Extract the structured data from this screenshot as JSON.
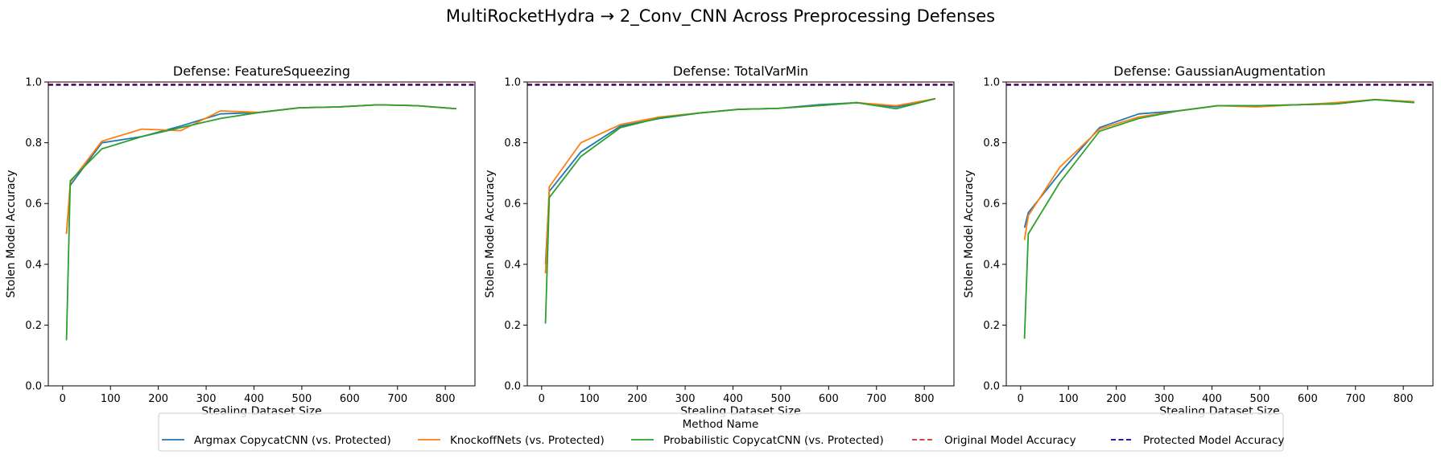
{
  "figure": {
    "suptitle": "MultiRocketHydra → 2_Conv_CNN Across Preprocessing Defenses"
  },
  "legend": {
    "title": "Method Name",
    "placement": "bottom-center",
    "entries": [
      {
        "label": "Argmax CopycatCNN (vs. Protected)",
        "color": "#1f77b4",
        "style": "solid"
      },
      {
        "label": "KnockoffNets (vs. Protected)",
        "color": "#ff7f0e",
        "style": "solid"
      },
      {
        "label": "Probabilistic CopycatCNN (vs. Protected)",
        "color": "#2ca02c",
        "style": "solid"
      },
      {
        "label": "Original Model Accuracy",
        "color": "#d62728",
        "style": "dashed"
      },
      {
        "label": "Protected Model Accuracy",
        "color": "#00008b",
        "style": "dashed"
      }
    ]
  },
  "chart_data": [
    {
      "type": "line",
      "title": "Defense: FeatureSqueezing",
      "xlabel": "Stealing Dataset Size",
      "ylabel": "Stolen Model Accuracy",
      "xlim": [
        -30,
        862
      ],
      "ylim": [
        0,
        1.0
      ],
      "xticks": [
        0,
        100,
        200,
        300,
        400,
        500,
        600,
        700,
        800
      ],
      "yticks": [
        0.0,
        0.2,
        0.4,
        0.6,
        0.8,
        1.0
      ],
      "grid": false,
      "reference_lines": [
        {
          "name": "Original Model Accuracy",
          "y": 0.993,
          "color": "#d62728"
        },
        {
          "name": "Protected Model Accuracy",
          "y": 0.99,
          "color": "#00008b"
        }
      ],
      "series": [
        {
          "name": "Argmax CopycatCNN (vs. Protected)",
          "color": "#1f77b4",
          "x": [
            8,
            16,
            82,
            165,
            247,
            330,
            412,
            494,
            577,
            659,
            741,
            823
          ],
          "y": [
            0.5,
            0.66,
            0.8,
            0.82,
            0.855,
            0.895,
            0.9,
            0.915,
            0.918,
            0.925,
            0.922,
            0.912
          ]
        },
        {
          "name": "KnockoffNets (vs. Protected)",
          "color": "#ff7f0e",
          "x": [
            8,
            16,
            82,
            165,
            247,
            330,
            412,
            494,
            577,
            659,
            741,
            823
          ],
          "y": [
            0.5,
            0.67,
            0.805,
            0.845,
            0.84,
            0.905,
            0.9,
            0.915,
            0.918,
            0.925,
            0.922,
            0.912
          ]
        },
        {
          "name": "Probabilistic CopycatCNN (vs. Protected)",
          "color": "#2ca02c",
          "x": [
            8,
            16,
            82,
            165,
            247,
            330,
            412,
            494,
            577,
            659,
            741,
            823
          ],
          "y": [
            0.15,
            0.675,
            0.78,
            0.82,
            0.85,
            0.88,
            0.9,
            0.915,
            0.918,
            0.925,
            0.922,
            0.912
          ]
        }
      ]
    },
    {
      "type": "line",
      "title": "Defense: TotalVarMin",
      "xlabel": "Stealing Dataset Size",
      "ylabel": "Stolen Model Accuracy",
      "xlim": [
        -30,
        862
      ],
      "ylim": [
        0,
        1.0
      ],
      "xticks": [
        0,
        100,
        200,
        300,
        400,
        500,
        600,
        700,
        800
      ],
      "yticks": [
        0.0,
        0.2,
        0.4,
        0.6,
        0.8,
        1.0
      ],
      "grid": false,
      "reference_lines": [
        {
          "name": "Original Model Accuracy",
          "y": 0.993,
          "color": "#d62728"
        },
        {
          "name": "Protected Model Accuracy",
          "y": 0.99,
          "color": "#00008b"
        }
      ],
      "series": [
        {
          "name": "Argmax CopycatCNN (vs. Protected)",
          "color": "#1f77b4",
          "x": [
            8,
            16,
            82,
            165,
            247,
            330,
            412,
            494,
            577,
            659,
            741,
            823
          ],
          "y": [
            0.4,
            0.64,
            0.77,
            0.855,
            0.88,
            0.898,
            0.91,
            0.913,
            0.925,
            0.932,
            0.918,
            0.945
          ]
        },
        {
          "name": "KnockoffNets (vs. Protected)",
          "color": "#ff7f0e",
          "x": [
            8,
            16,
            82,
            165,
            247,
            330,
            412,
            494,
            577,
            659,
            741,
            823
          ],
          "y": [
            0.37,
            0.655,
            0.8,
            0.86,
            0.885,
            0.898,
            0.91,
            0.913,
            0.922,
            0.932,
            0.922,
            0.945
          ]
        },
        {
          "name": "Probabilistic CopycatCNN (vs. Protected)",
          "color": "#2ca02c",
          "x": [
            8,
            16,
            82,
            165,
            247,
            330,
            412,
            494,
            577,
            659,
            741,
            823
          ],
          "y": [
            0.205,
            0.62,
            0.755,
            0.85,
            0.882,
            0.898,
            0.91,
            0.913,
            0.922,
            0.932,
            0.912,
            0.945
          ]
        }
      ]
    },
    {
      "type": "line",
      "title": "Defense: GaussianAugmentation",
      "xlabel": "Stealing Dataset Size",
      "ylabel": "Stolen Model Accuracy",
      "xlim": [
        -30,
        862
      ],
      "ylim": [
        0,
        1.0
      ],
      "xticks": [
        0,
        100,
        200,
        300,
        400,
        500,
        600,
        700,
        800
      ],
      "yticks": [
        0.0,
        0.2,
        0.4,
        0.6,
        0.8,
        1.0
      ],
      "grid": false,
      "reference_lines": [
        {
          "name": "Original Model Accuracy",
          "y": 0.993,
          "color": "#d62728"
        },
        {
          "name": "Protected Model Accuracy",
          "y": 0.99,
          "color": "#00008b"
        }
      ],
      "series": [
        {
          "name": "Argmax CopycatCNN (vs. Protected)",
          "color": "#1f77b4",
          "x": [
            8,
            16,
            82,
            165,
            247,
            330,
            412,
            494,
            577,
            659,
            741,
            823
          ],
          "y": [
            0.52,
            0.57,
            0.7,
            0.85,
            0.895,
            0.905,
            0.922,
            0.922,
            0.925,
            0.928,
            0.942,
            0.935
          ]
        },
        {
          "name": "KnockoffNets (vs. Protected)",
          "color": "#ff7f0e",
          "x": [
            8,
            16,
            82,
            165,
            247,
            330,
            412,
            494,
            577,
            659,
            741,
            823
          ],
          "y": [
            0.48,
            0.56,
            0.72,
            0.845,
            0.885,
            0.905,
            0.922,
            0.918,
            0.925,
            0.932,
            0.942,
            0.935
          ]
        },
        {
          "name": "Probabilistic CopycatCNN (vs. Protected)",
          "color": "#2ca02c",
          "x": [
            8,
            16,
            82,
            165,
            247,
            330,
            412,
            494,
            577,
            659,
            741,
            823
          ],
          "y": [
            0.155,
            0.5,
            0.67,
            0.838,
            0.88,
            0.905,
            0.922,
            0.922,
            0.925,
            0.928,
            0.942,
            0.932
          ]
        }
      ]
    }
  ]
}
